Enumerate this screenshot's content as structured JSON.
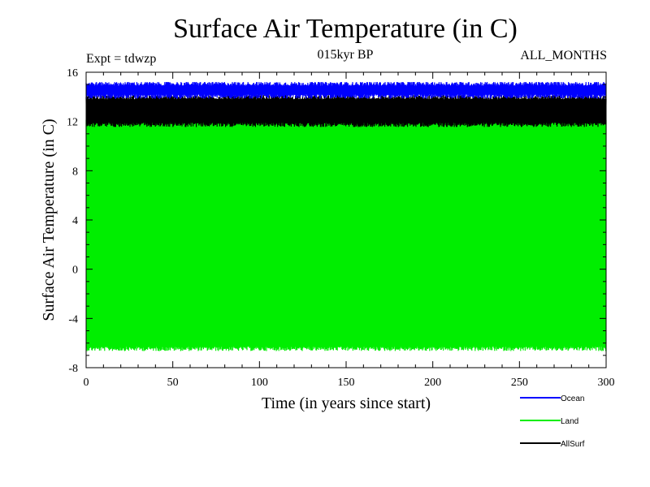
{
  "chart_data": {
    "type": "line",
    "title": "Surface Air Temperature (in C)",
    "subtitle_left": "Expt = tdwzp",
    "subtitle_center": "015kyr BP",
    "subtitle_right": "ALL_MONTHS",
    "xlabel": "Time (in years since start)",
    "ylabel": "Surface Air Temperature (in C)",
    "xlim": [
      0,
      300
    ],
    "ylim": [
      -8,
      16
    ],
    "x_ticks": [
      0,
      50,
      100,
      150,
      200,
      250,
      300
    ],
    "x_tick_labels": [
      "0",
      "50",
      "100",
      "150",
      "200",
      "250",
      "300"
    ],
    "y_ticks": [
      -8,
      -4,
      0,
      4,
      8,
      12,
      16
    ],
    "y_tick_labels": [
      "-8",
      "-4",
      "0",
      "4",
      "8",
      "12",
      "16"
    ],
    "grid": false,
    "legend_position": "bottom-right, below plot",
    "series": [
      {
        "name": "Ocean",
        "color": "#0000ff",
        "min": 13.8,
        "max": 15.2,
        "mean_high": 14.9,
        "mean_low": 14.2
      },
      {
        "name": "Land",
        "color": "#00ee00",
        "min": -7.0,
        "max": 12.3,
        "mean_high": 11.9,
        "mean_low": -6.3
      },
      {
        "name": "AllSurf",
        "color": "#000000",
        "min": 11.2,
        "max": 14.2,
        "mean_high": 13.8,
        "mean_low": 11.9
      }
    ]
  }
}
